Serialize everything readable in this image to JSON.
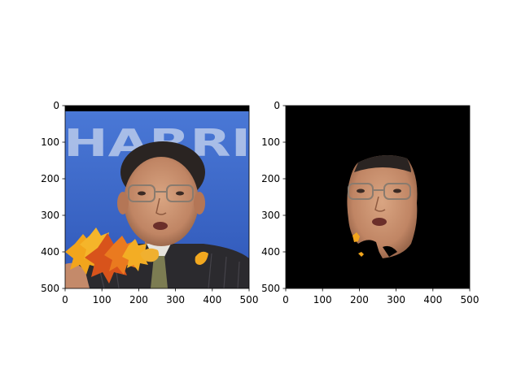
{
  "chart_data": [
    {
      "type": "image",
      "title": "",
      "xlabel": "",
      "ylabel": "",
      "xlim": [
        0,
        500
      ],
      "ylim": [
        500,
        0
      ],
      "xticks": [
        0,
        100,
        200,
        300,
        400,
        500
      ],
      "yticks": [
        0,
        100,
        200,
        300,
        400,
        500
      ],
      "grid": false,
      "content": "photo of man with glasses and suit, blue background with partial white text, orange autumn leaves overlaid at lower left"
    },
    {
      "type": "image",
      "title": "",
      "xlabel": "",
      "ylabel": "",
      "xlim": [
        0,
        500
      ],
      "ylim": [
        500,
        0
      ],
      "xticks": [
        0,
        100,
        200,
        300,
        400,
        500
      ],
      "yticks": [
        0,
        100,
        200,
        300,
        400,
        500
      ],
      "grid": false,
      "content": "face segmentation mask: face region kept on black background"
    }
  ],
  "background_text": "HARRI",
  "colors": {
    "sky_blue": "#3a63c8",
    "skin": "#c89270",
    "hair": "#2a2422",
    "suit": "#2b2a2e",
    "leaf_orange": "#f0a01c",
    "leaf_red": "#d8531b",
    "mask_bg": "#000000"
  }
}
